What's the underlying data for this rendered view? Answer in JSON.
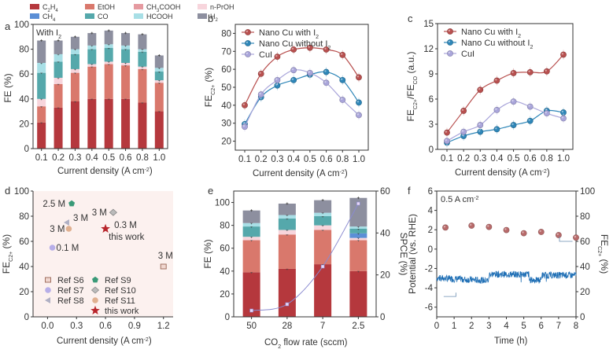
{
  "figure": {
    "panel_labels": [
      "a",
      "b",
      "c",
      "d",
      "e",
      "f"
    ]
  },
  "chart_data": [
    {
      "id": "a",
      "type": "bar",
      "stacked": true,
      "title": "",
      "annotation": "With I2",
      "xlabel": "Current density (A cm-2)",
      "ylabel": "FE (%)",
      "ylim": [
        0,
        100
      ],
      "yticks": [
        0,
        20,
        40,
        60,
        80,
        100
      ],
      "categories": [
        "0.1",
        "0.2",
        "0.3",
        "0.4",
        "0.5",
        "0.6",
        "0.8",
        "1.0"
      ],
      "legend": {
        "placement": "top",
        "entries": [
          {
            "label": "C2H4",
            "sub": "2",
            "sub2": "4",
            "color": "#b5383d"
          },
          {
            "label": "EtOH",
            "color": "#d9786c"
          },
          {
            "label": "CH3COOH",
            "color": "#e59aa0"
          },
          {
            "label": "n-PrOH",
            "color": "#f7d5dc"
          },
          {
            "label": "CH4",
            "color": "#5b8fd6"
          },
          {
            "label": "CO",
            "color": "#55a8ab"
          },
          {
            "label": "HCOOH",
            "color": "#a8dfe6"
          },
          {
            "label": "H2",
            "color": "#8d8f9f"
          }
        ]
      },
      "series": [
        {
          "name": "C2H4",
          "values": [
            21,
            33,
            38,
            40,
            40,
            40,
            37,
            30
          ]
        },
        {
          "name": "EtOH",
          "values": [
            13,
            19,
            23,
            26,
            28,
            27,
            27,
            23
          ]
        },
        {
          "name": "CH3COOH",
          "values": [
            0,
            0,
            0,
            0,
            0,
            0,
            0,
            0
          ]
        },
        {
          "name": "n-PrOH",
          "values": [
            6,
            5,
            3,
            2,
            2,
            2,
            2,
            2
          ]
        },
        {
          "name": "CH4",
          "values": [
            0,
            0,
            0,
            0,
            0,
            0,
            0,
            0
          ]
        },
        {
          "name": "CO",
          "values": [
            21,
            13,
            12,
            12,
            11,
            11,
            12,
            7
          ]
        },
        {
          "name": "HCOOH",
          "values": [
            8,
            6,
            4,
            3,
            3,
            3,
            2,
            3
          ]
        },
        {
          "name": "H2",
          "values": [
            18,
            11,
            10,
            10,
            11,
            10,
            12,
            10
          ]
        }
      ]
    },
    {
      "id": "b",
      "type": "line",
      "xlabel": "Current density (A cm-2)",
      "ylabel": "FE",
      "ylabel_sub": "C2+",
      "ylabel_unit": " (%)",
      "ylim": [
        15,
        85
      ],
      "yticks": [
        20,
        30,
        40,
        50,
        60,
        70,
        80
      ],
      "categories": [
        "0.1",
        "0.2",
        "0.3",
        "0.4",
        "0.5",
        "0.6",
        "0.8",
        "1.0"
      ],
      "legend": {
        "placement": "top-left"
      },
      "series": [
        {
          "name": "Nano Cu with I2",
          "color": "#b8504f",
          "values": [
            40,
            57.5,
            67,
            71,
            72,
            71,
            68,
            55.5
          ]
        },
        {
          "name": "Nano Cu without I2",
          "color": "#2e86b8",
          "values": [
            29.5,
            44.5,
            51,
            54,
            57,
            58.5,
            54,
            41.5
          ]
        },
        {
          "name": "CuI",
          "color": "#a9a5da",
          "values": [
            28,
            46,
            54,
            59.5,
            58,
            52.5,
            43,
            34.5
          ]
        }
      ]
    },
    {
      "id": "c",
      "type": "line",
      "xlabel": "Current density (A cm-2)",
      "ylabel": "FEC2+/FECO (a.u.)",
      "ylim": [
        0,
        15
      ],
      "yticks": [
        0,
        3,
        6,
        9,
        12,
        15
      ],
      "categories": [
        "0.1",
        "0.2",
        "0.3",
        "0.4",
        "0.5",
        "0.6",
        "0.8",
        "1.0"
      ],
      "legend": {
        "placement": "top-left"
      },
      "series": [
        {
          "name": "Nano Cu with I2",
          "color": "#b8504f",
          "values": [
            2.0,
            4.6,
            7.1,
            8.2,
            9.1,
            9.2,
            9.3,
            11.3
          ]
        },
        {
          "name": "Nano Cu without I2",
          "color": "#2e86b8",
          "values": [
            0.8,
            1.6,
            2.1,
            2.4,
            2.9,
            3.4,
            4.6,
            4.4
          ]
        },
        {
          "name": "CuI",
          "color": "#a9a5da",
          "values": [
            1.0,
            2.1,
            2.9,
            4.7,
            5.7,
            5.1,
            4.3,
            3.7
          ]
        }
      ]
    },
    {
      "id": "d",
      "type": "scatter",
      "xlabel": "Current density (A cm-2)",
      "ylabel": "FEC2+ (%)",
      "xlim": [
        -0.15,
        1.3
      ],
      "ylim": [
        0,
        100
      ],
      "xticks": [
        "0.0",
        "0.3",
        "0.6",
        "0.9",
        "1.2"
      ],
      "yticks": [
        0,
        20,
        40,
        60,
        80,
        100
      ],
      "background": "#fcf1ef",
      "legend": {
        "placement": "bottom-left"
      },
      "points": [
        {
          "name": "Ref S6",
          "x": 1.2,
          "y": 40,
          "label": "3 M",
          "color": "#a07060",
          "marker": "square"
        },
        {
          "name": "Ref S7",
          "x": 0.05,
          "y": 55,
          "label": "0.1 M",
          "color": "#b7aee8",
          "marker": "circle"
        },
        {
          "name": "Ref S8",
          "x": 0.2,
          "y": 75,
          "label": "3 M",
          "color": "#b0b0c4",
          "marker": "triangle-left"
        },
        {
          "name": "Ref S9",
          "x": 0.25,
          "y": 90,
          "label": "2.5 M",
          "color": "#3a9a78",
          "marker": "pentagon"
        },
        {
          "name": "Ref S10",
          "x": 0.68,
          "y": 83,
          "label": "3 M",
          "color": "#888888",
          "marker": "diamond"
        },
        {
          "name": "Ref S11",
          "x": 0.22,
          "y": 70,
          "label": "3 M",
          "color": "#e0b090",
          "marker": "hexagon"
        },
        {
          "name": "this work",
          "x": 0.6,
          "y": 70,
          "label": "0.3 M",
          "label2": "this work",
          "color": "#b8252b",
          "marker": "star"
        }
      ]
    },
    {
      "id": "e",
      "type": "bar",
      "stacked": true,
      "xlabel": "CO2 flow rate (sccm)",
      "ylabel": "FE (%)",
      "ylabel_right": "SPCE (%)",
      "ylim": [
        0,
        110
      ],
      "yticks": [
        0,
        20,
        40,
        60,
        80,
        100
      ],
      "ylim_right": [
        0,
        60
      ],
      "yticks_right": [
        0,
        20,
        40,
        60
      ],
      "categories": [
        "50",
        "28",
        "7",
        "2.5"
      ],
      "series": [
        {
          "name": "C2H4",
          "values": [
            39,
            42,
            46,
            40
          ]
        },
        {
          "name": "EtOH",
          "values": [
            28,
            30,
            30,
            27
          ]
        },
        {
          "name": "CH3COOH",
          "values": [
            0,
            0,
            0,
            0
          ]
        },
        {
          "name": "n-PrOH",
          "values": [
            3,
            4,
            4,
            2
          ]
        },
        {
          "name": "CH4",
          "values": [
            0,
            0,
            0,
            4
          ]
        },
        {
          "name": "CO",
          "values": [
            9,
            10,
            8,
            4
          ]
        },
        {
          "name": "HCOOH",
          "values": [
            3,
            3,
            3,
            2
          ]
        },
        {
          "name": "H2",
          "values": [
            11,
            10,
            11,
            25
          ]
        }
      ],
      "spce_series": {
        "name": "SPCE",
        "color": "#8a8ad0",
        "values": [
          3,
          6,
          24,
          54
        ]
      }
    },
    {
      "id": "f",
      "type": "line",
      "annotation": "0.5 A cm-2",
      "xlabel": "Time (h)",
      "ylabel": "Potential (vs. RHE)",
      "ylabel_right": "FEC2+ (%)",
      "xlim": [
        0,
        8
      ],
      "xticks": [
        0,
        1,
        2,
        3,
        4,
        5,
        6,
        7,
        8
      ],
      "ylim": [
        -7,
        6
      ],
      "yticks": [
        -6,
        -4,
        -2,
        0,
        2,
        4,
        6
      ],
      "ylim_right": [
        0,
        100
      ],
      "yticks_right": [
        0,
        20,
        40,
        60,
        80,
        100
      ],
      "series": [
        {
          "name": "Potential",
          "color": "#1f6fb5",
          "segments": [
            {
              "t": [
                0,
                3
              ],
              "v": -3.0
            },
            {
              "t": [
                3,
                5.3
              ],
              "v": -2.6
            },
            {
              "t": [
                5.3,
                6.0
              ],
              "v": -3.2
            },
            {
              "t": [
                6.0,
                8
              ],
              "v": -2.7
            }
          ]
        },
        {
          "name": "FEC2+",
          "color": "#b86a6a",
          "x": [
            0.5,
            2,
            3,
            4,
            5,
            6,
            7,
            8
          ],
          "values": [
            71,
            72.5,
            71.5,
            69,
            66.5,
            67.5,
            65,
            63
          ]
        }
      ]
    }
  ]
}
